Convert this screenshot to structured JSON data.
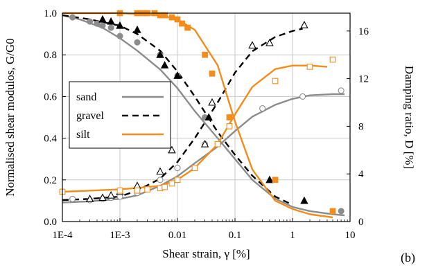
{
  "colors": {
    "sand": "#8c8c8c",
    "gravel": "#000000",
    "silt": "#f28c1a",
    "grid": "#c8c8c8",
    "frame": "#000000"
  },
  "panel_label": "(b)",
  "chart_data": {
    "type": "line",
    "title": "",
    "xlabel": "Shear strain, γ [%]",
    "ylabel_left": "Normalised shear modulos, G/G0",
    "ylabel_right": "Damping ratio, D [%]",
    "x_scale": "log",
    "xlim": [
      0.0001,
      10
    ],
    "ylim_left": [
      0,
      1.0
    ],
    "ylim_right": [
      0,
      17.5
    ],
    "x_ticks": [
      0.0001,
      0.001,
      0.01,
      0.1,
      1,
      10
    ],
    "x_tick_labels": [
      "1E-4",
      "1E-3",
      "0.01",
      "0.1",
      "1",
      "10"
    ],
    "y_left_ticks": [
      0,
      0.2,
      0.4,
      0.6,
      0.8,
      1.0
    ],
    "y_left_tick_labels": [
      "0.0",
      "0.2",
      "0.4",
      "0.6",
      "0.8",
      "1.0"
    ],
    "y_right_ticks": [
      0,
      4,
      8,
      12,
      16
    ],
    "y_right_tick_labels": [
      "0",
      "4",
      "8",
      "12",
      "16"
    ],
    "grid": true,
    "legend_position": "middle-left",
    "series": [
      {
        "name": "sand",
        "color_key": "sand",
        "dash": "solid",
        "marker": "circle",
        "modulus_curve": [
          [
            0.0001,
            0.99
          ],
          [
            0.0002,
            0.97
          ],
          [
            0.0005,
            0.93
          ],
          [
            0.001,
            0.88
          ],
          [
            0.002,
            0.82
          ],
          [
            0.005,
            0.73
          ],
          [
            0.01,
            0.64
          ],
          [
            0.02,
            0.53
          ],
          [
            0.05,
            0.4
          ],
          [
            0.1,
            0.3
          ],
          [
            0.2,
            0.2
          ],
          [
            0.5,
            0.11
          ],
          [
            1,
            0.07
          ],
          [
            2,
            0.05
          ],
          [
            5,
            0.035
          ],
          [
            8,
            0.03
          ]
        ],
        "modulus_points": [
          [
            0.00015,
            0.98
          ],
          [
            0.0003,
            0.96
          ],
          [
            0.0004,
            0.95
          ],
          [
            0.0005,
            0.94
          ],
          [
            0.0007,
            0.93
          ],
          [
            0.001,
            0.89
          ],
          [
            0.002,
            0.86
          ],
          [
            0.005,
            0.8
          ],
          [
            0.01,
            0.7
          ],
          [
            0.03,
            0.5
          ],
          [
            7,
            0.05
          ]
        ],
        "damping_curve": [
          [
            0.0001,
            1.6
          ],
          [
            0.0003,
            1.7
          ],
          [
            0.001,
            1.9
          ],
          [
            0.002,
            2.2
          ],
          [
            0.005,
            3.0
          ],
          [
            0.01,
            3.8
          ],
          [
            0.02,
            4.9
          ],
          [
            0.05,
            6.3
          ],
          [
            0.1,
            7.6
          ],
          [
            0.2,
            8.8
          ],
          [
            0.5,
            9.8
          ],
          [
            1,
            10.3
          ],
          [
            2,
            10.6
          ],
          [
            5,
            10.7
          ],
          [
            8,
            10.7
          ]
        ],
        "damping_points": [
          [
            0.00015,
            1.9
          ],
          [
            0.0003,
            1.8
          ],
          [
            0.0005,
            1.9
          ],
          [
            0.0007,
            2.0
          ],
          [
            0.001,
            2.1
          ],
          [
            0.002,
            2.4
          ],
          [
            0.005,
            3.5
          ],
          [
            0.01,
            4.5
          ],
          [
            0.03,
            6.5
          ],
          [
            0.3,
            9.5
          ],
          [
            1.5,
            10.5
          ],
          [
            7,
            11.0
          ]
        ]
      },
      {
        "name": "gravel",
        "color_key": "gravel",
        "dash": "dashed",
        "marker": "triangle",
        "modulus_curve": [
          [
            0.0001,
            0.99
          ],
          [
            0.0003,
            0.97
          ],
          [
            0.001,
            0.94
          ],
          [
            0.002,
            0.9
          ],
          [
            0.005,
            0.82
          ],
          [
            0.01,
            0.72
          ],
          [
            0.02,
            0.6
          ],
          [
            0.05,
            0.43
          ],
          [
            0.1,
            0.32
          ],
          [
            0.2,
            0.22
          ],
          [
            0.5,
            0.12
          ],
          [
            1,
            0.08
          ]
        ],
        "modulus_points": [
          [
            0.0005,
            0.97
          ],
          [
            0.0007,
            0.96
          ],
          [
            0.001,
            0.94
          ],
          [
            0.002,
            0.92
          ],
          [
            0.005,
            0.8
          ],
          [
            0.006,
            0.75
          ],
          [
            0.01,
            0.7
          ],
          [
            0.035,
            0.5
          ],
          [
            0.4,
            0.2
          ],
          [
            1.6,
            0.1
          ]
        ],
        "damping_curve": [
          [
            0.0001,
            1.8
          ],
          [
            0.0003,
            1.9
          ],
          [
            0.001,
            2.1
          ],
          [
            0.002,
            2.6
          ],
          [
            0.005,
            3.6
          ],
          [
            0.01,
            5.0
          ],
          [
            0.02,
            7.0
          ],
          [
            0.05,
            10.0
          ],
          [
            0.1,
            12.5
          ],
          [
            0.2,
            14.3
          ],
          [
            0.5,
            15.5
          ],
          [
            1,
            16.0
          ],
          [
            1.5,
            16.2
          ]
        ],
        "damping_points": [
          [
            0.0003,
            1.9
          ],
          [
            0.0005,
            2.0
          ],
          [
            0.0007,
            2.2
          ],
          [
            0.001,
            2.5
          ],
          [
            0.002,
            3.0
          ],
          [
            0.005,
            4.2
          ],
          [
            0.008,
            6.0
          ],
          [
            0.03,
            6.5
          ],
          [
            0.04,
            10.0
          ],
          [
            0.2,
            14.8
          ],
          [
            0.4,
            15.0
          ],
          [
            1.6,
            16.5
          ]
        ]
      },
      {
        "name": "silt",
        "color_key": "silt",
        "dash": "solid",
        "marker": "square",
        "modulus_curve": [
          [
            0.0001,
            1.0
          ],
          [
            0.001,
            1.0
          ],
          [
            0.005,
            0.99
          ],
          [
            0.01,
            0.97
          ],
          [
            0.02,
            0.92
          ],
          [
            0.05,
            0.75
          ],
          [
            0.1,
            0.48
          ],
          [
            0.2,
            0.25
          ],
          [
            0.5,
            0.1
          ],
          [
            1,
            0.06
          ],
          [
            2,
            0.035
          ],
          [
            5,
            0.02
          ]
        ],
        "modulus_points": [
          [
            0.001,
            1.0
          ],
          [
            0.002,
            1.0
          ],
          [
            0.0025,
            1.0
          ],
          [
            0.003,
            1.0
          ],
          [
            0.004,
            1.0
          ],
          [
            0.005,
            0.99
          ],
          [
            0.006,
            0.99
          ],
          [
            0.008,
            0.98
          ],
          [
            0.01,
            0.97
          ],
          [
            0.012,
            0.95
          ],
          [
            0.015,
            0.93
          ],
          [
            0.03,
            0.8
          ],
          [
            0.04,
            0.71
          ],
          [
            0.08,
            0.5
          ],
          [
            0.5,
            0.2
          ],
          [
            5,
            0.05
          ]
        ],
        "damping_curve": [
          [
            0.0001,
            2.5
          ],
          [
            0.001,
            2.7
          ],
          [
            0.005,
            3.0
          ],
          [
            0.01,
            3.5
          ],
          [
            0.02,
            4.5
          ],
          [
            0.05,
            6.5
          ],
          [
            0.1,
            9.0
          ],
          [
            0.2,
            11.3
          ],
          [
            0.5,
            12.8
          ],
          [
            1,
            13.1
          ],
          [
            2,
            13.1
          ],
          [
            4,
            13.0
          ]
        ],
        "damping_points": [
          [
            0.0001,
            2.5
          ],
          [
            0.001,
            2.6
          ],
          [
            0.002,
            2.6
          ],
          [
            0.003,
            2.7
          ],
          [
            0.005,
            2.8
          ],
          [
            0.006,
            2.9
          ],
          [
            0.008,
            3.2
          ],
          [
            0.01,
            3.5
          ],
          [
            0.02,
            4.5
          ],
          [
            0.05,
            6.5
          ],
          [
            0.08,
            8.0
          ],
          [
            0.5,
            11.8
          ],
          [
            2,
            13.0
          ],
          [
            5,
            13.6
          ]
        ]
      }
    ]
  }
}
